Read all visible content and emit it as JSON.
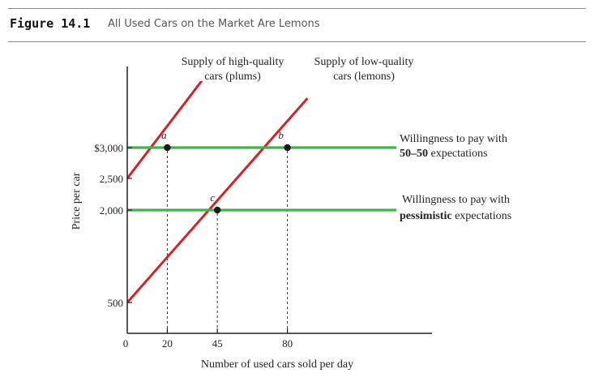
{
  "figure": {
    "number": "Figure 14.1",
    "title": "All Used Cars on the Market Are Lemons"
  },
  "colors": {
    "supply": "#d2232a",
    "demand": "#3db54a",
    "axis": "#222222",
    "point": "#1a1a1a"
  },
  "chart_data": {
    "type": "line",
    "xlabel": "Number of used cars sold per day",
    "ylabel": "Price per car",
    "x_ticks": [
      {
        "value": 0,
        "label": "0"
      },
      {
        "value": 20,
        "label": "20"
      },
      {
        "value": 45,
        "label": "45"
      },
      {
        "value": 80,
        "label": "80"
      }
    ],
    "y_ticks": [
      {
        "value": 500,
        "label": "500"
      },
      {
        "value": 2000,
        "label": "2,000"
      },
      {
        "value": 2500,
        "label": "2,500"
      },
      {
        "value": 3000,
        "label": "$3,000"
      }
    ],
    "series": [
      {
        "name_line1": "Supply of high-quality",
        "name_line2": "cars (plums)",
        "kind": "supply",
        "x": [
          0,
          47
        ],
        "y": [
          2500,
          4500
        ]
      },
      {
        "name_line1": "Supply of low-quality",
        "name_line2": "cars (lemons)",
        "kind": "supply",
        "x": [
          0,
          90
        ],
        "y": [
          500,
          3800
        ]
      },
      {
        "name_line1": "Willingness to pay with",
        "name_bold": "50–50",
        "name_rest": " expectations",
        "kind": "demand",
        "x": [
          0,
          108
        ],
        "y": [
          3000,
          3000
        ]
      },
      {
        "name_line1": "Willingness to pay with",
        "name_bold": "pessimistic",
        "name_rest": " expectations",
        "kind": "demand",
        "x": [
          0,
          108
        ],
        "y": [
          2000,
          2000
        ]
      }
    ],
    "points": [
      {
        "label": "a",
        "x": 20,
        "y": 3000
      },
      {
        "label": "b",
        "x": 80,
        "y": 3000
      },
      {
        "label": "c",
        "x": 45,
        "y": 2000
      }
    ]
  }
}
